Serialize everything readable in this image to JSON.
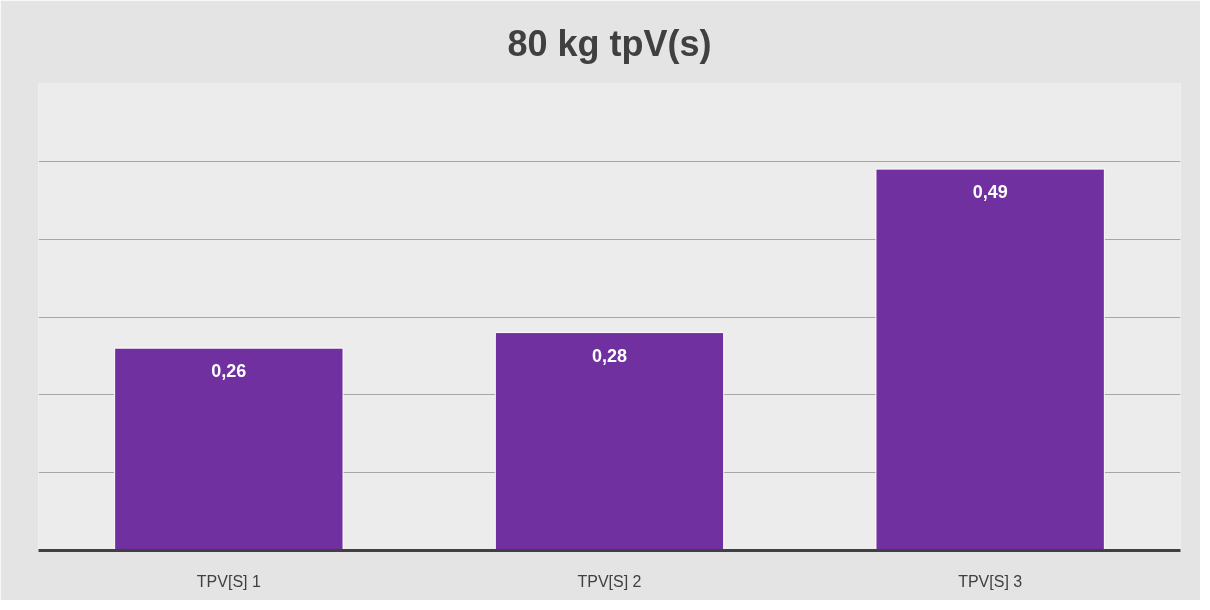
{
  "chart_data": {
    "type": "bar",
    "title": "80 kg tpV(s)",
    "categories": [
      "TPV[S] 1",
      "TPV[S] 2",
      "TPV[S] 3"
    ],
    "values": [
      0.26,
      0.28,
      0.49
    ],
    "value_labels": [
      "0,26",
      "0,28",
      "0,49"
    ],
    "color": "#7030a0",
    "ylim": [
      0,
      0.6
    ],
    "yticks": [
      {
        "value": 0,
        "label": null
      },
      {
        "value": 0.1,
        "label": null
      },
      {
        "value": 0.2,
        "label": null
      },
      {
        "value": 0.3,
        "label": null
      },
      {
        "value": 0.4,
        "label": null
      },
      {
        "value": 0.5,
        "label": null
      },
      {
        "value": 0.6,
        "label": null
      }
    ],
    "grid": "y",
    "tick_labels": "x"
  }
}
